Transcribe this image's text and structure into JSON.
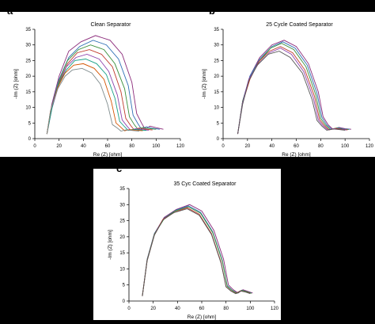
{
  "panels": [
    {
      "letter": "a"
    },
    {
      "letter": "b"
    },
    {
      "letter": "c"
    }
  ],
  "chart_data": [
    {
      "type": "line",
      "title": "Clean Separator",
      "xlabel": "Re (Z) [ohm]",
      "ylabel": "-Im (Z) [ohm]",
      "xlim": [
        0,
        120
      ],
      "ylim": [
        0,
        35
      ],
      "xticks": [
        "0",
        "20",
        "40",
        "60",
        "80",
        "100",
        "120"
      ],
      "yticks": [
        "0",
        "5",
        "10",
        "15",
        "20",
        "25",
        "30",
        "35"
      ],
      "colors": [
        "#8b2a7a",
        "#2e6fb5",
        "#3a8f3a",
        "#c0392b",
        "#8e44ad",
        "#16a085",
        "#d35400",
        "#7f8c8d",
        "#555555"
      ],
      "series": [
        {
          "x": [
            10,
            14,
            20,
            28,
            38,
            50,
            62,
            72,
            80,
            84,
            88,
            91,
            95,
            100,
            106
          ],
          "y": [
            1.5,
            11,
            20,
            28,
            31,
            33,
            31.5,
            27,
            18,
            8,
            5,
            3,
            4,
            3.5,
            3
          ]
        },
        {
          "x": [
            10,
            14,
            20,
            28,
            37,
            48,
            59,
            69,
            77,
            81,
            85,
            88,
            92,
            97,
            103
          ],
          "y": [
            1.5,
            10.5,
            19,
            26,
            29.5,
            31.5,
            30,
            25.5,
            17,
            7.5,
            4.8,
            3,
            3.8,
            3.3,
            3
          ]
        },
        {
          "x": [
            10,
            14,
            20,
            27,
            36,
            46,
            57,
            66,
            74,
            78,
            82,
            85,
            89,
            94,
            100
          ],
          "y": [
            1.5,
            10,
            18.5,
            25,
            28.5,
            30,
            28.5,
            24,
            16,
            7,
            4.5,
            3,
            3.6,
            3.2,
            3
          ]
        },
        {
          "x": [
            10,
            14,
            20,
            27,
            35,
            45,
            55,
            64,
            71,
            75,
            79,
            82,
            86,
            91,
            97
          ],
          "y": [
            1.5,
            10,
            18,
            24,
            27.5,
            28.5,
            27,
            23,
            15,
            6.5,
            4.2,
            2.8,
            3.4,
            3,
            2.8
          ]
        },
        {
          "x": [
            10,
            14,
            20,
            26,
            34,
            43,
            53,
            61,
            68,
            72,
            76,
            79,
            83,
            88,
            94
          ],
          "y": [
            1.5,
            9.5,
            17.5,
            23,
            26,
            27,
            25.5,
            21.5,
            14,
            6,
            4,
            2.7,
            3.2,
            2.9,
            2.7
          ]
        },
        {
          "x": [
            10,
            14,
            19,
            26,
            33,
            42,
            51,
            59,
            66,
            70,
            74,
            77,
            81,
            86,
            92
          ],
          "y": [
            1.5,
            9.5,
            17,
            22,
            25,
            25.5,
            24,
            20.5,
            13,
            5.5,
            3.8,
            2.6,
            3,
            2.8,
            2.6
          ]
        },
        {
          "x": [
            10,
            13,
            19,
            25,
            32,
            40,
            49,
            57,
            63,
            67,
            71,
            74,
            78,
            83,
            89
          ],
          "y": [
            1.5,
            9,
            16.5,
            21,
            23.5,
            24,
            22.5,
            19,
            12,
            5,
            3.6,
            2.5,
            2.9,
            2.7,
            2.5
          ]
        },
        {
          "x": [
            10,
            13,
            19,
            25,
            31,
            39,
            47,
            54,
            60,
            64,
            68,
            71,
            75,
            80,
            86
          ],
          "y": [
            1.5,
            9,
            16,
            20,
            22,
            22.5,
            21,
            17.5,
            11,
            4.5,
            3.4,
            2.4,
            2.8,
            2.6,
            2.4
          ]
        }
      ]
    },
    {
      "type": "line",
      "title": "25 Cycle Coated Separator",
      "xlabel": "Re (Z) [ohm]",
      "ylabel": "-Im (Z) [ohm]",
      "xlim": [
        0,
        120
      ],
      "ylim": [
        0,
        35
      ],
      "xticks": [
        "0",
        "20",
        "40",
        "60",
        "80",
        "100",
        "120"
      ],
      "yticks": [
        "0",
        "5",
        "10",
        "15",
        "20",
        "25",
        "30",
        "35"
      ],
      "colors": [
        "#8b2a7a",
        "#2e6fb5",
        "#3a8f3a",
        "#c0392b",
        "#8e44ad",
        "#555555"
      ],
      "series": [
        {
          "x": [
            12,
            16,
            22,
            30,
            40,
            50,
            60,
            70,
            78,
            82,
            86,
            90,
            95,
            100,
            105
          ],
          "y": [
            1.5,
            12,
            20,
            26,
            30,
            31.5,
            29.5,
            24,
            15,
            7,
            4.5,
            3,
            3.6,
            3.2,
            3
          ]
        },
        {
          "x": [
            12,
            16,
            22,
            30,
            40,
            49,
            59,
            69,
            77,
            81,
            85,
            89,
            94,
            99,
            104
          ],
          "y": [
            1.5,
            12,
            20,
            25.5,
            29.5,
            31,
            29,
            23.5,
            14.5,
            6.8,
            4.4,
            3,
            3.5,
            3.1,
            3
          ]
        },
        {
          "x": [
            12,
            16,
            22,
            30,
            39,
            48,
            58,
            68,
            76,
            80,
            84,
            88,
            93,
            98,
            103
          ],
          "y": [
            1.5,
            12,
            19.5,
            25,
            29,
            30.5,
            28.5,
            23,
            14,
            6.5,
            4.3,
            2.9,
            3.4,
            3,
            2.9
          ]
        },
        {
          "x": [
            12,
            16,
            22,
            29,
            38,
            47,
            57,
            67,
            75,
            79,
            83,
            87,
            92,
            97,
            102
          ],
          "y": [
            1.5,
            11.5,
            19,
            24.5,
            28,
            29.5,
            27.5,
            22,
            13.5,
            6.2,
            4.2,
            2.8,
            3.3,
            3,
            2.8
          ]
        },
        {
          "x": [
            12,
            16,
            21,
            29,
            38,
            47,
            56,
            66,
            74,
            78,
            82,
            86,
            91,
            96,
            101
          ],
          "y": [
            1.5,
            11.5,
            19,
            24,
            27.5,
            29,
            27,
            21.5,
            13,
            6,
            4.1,
            2.8,
            3.2,
            2.9,
            2.8
          ]
        },
        {
          "x": [
            12,
            16,
            21,
            28,
            37,
            46,
            55,
            65,
            73,
            77,
            81,
            85,
            90,
            95,
            100
          ],
          "y": [
            1.5,
            11,
            18.5,
            23.5,
            27,
            28,
            26,
            21,
            12.5,
            5.8,
            4,
            2.7,
            3.1,
            2.9,
            2.7
          ]
        }
      ]
    },
    {
      "type": "line",
      "title": "35 Cyc Coated Separator",
      "xlabel": "Re (Z) [ohm]",
      "ylabel": "-Im (Z) [ohm]",
      "xlim": [
        0,
        120
      ],
      "ylim": [
        0,
        35
      ],
      "xticks": [
        "0",
        "20",
        "40",
        "60",
        "80",
        "100",
        "120"
      ],
      "yticks": [
        "0",
        "5",
        "10",
        "15",
        "20",
        "25",
        "30",
        "35"
      ],
      "colors": [
        "#8b2a7a",
        "#2e6fb5",
        "#3a8f3a",
        "#c0392b",
        "#555555"
      ],
      "series": [
        {
          "x": [
            11,
            15,
            21,
            29,
            39,
            50,
            60,
            70,
            78,
            82,
            86,
            90,
            94,
            98,
            102
          ],
          "y": [
            1.5,
            13,
            21,
            26,
            28.5,
            30,
            28,
            22,
            13,
            5,
            3.5,
            2.5,
            3.5,
            3,
            2.5
          ]
        },
        {
          "x": [
            11,
            15,
            21,
            29,
            39,
            49,
            59,
            69,
            77,
            81,
            85,
            89,
            93,
            97,
            101
          ],
          "y": [
            1.5,
            13,
            21,
            25.8,
            28.3,
            29.6,
            27.6,
            21.6,
            12.6,
            4.8,
            3.4,
            2.5,
            3.4,
            2.9,
            2.5
          ]
        },
        {
          "x": [
            11,
            15,
            21,
            29,
            38,
            49,
            59,
            69,
            77,
            81,
            85,
            89,
            93,
            97,
            101
          ],
          "y": [
            1.5,
            12.8,
            20.8,
            25.6,
            28,
            29.3,
            27.3,
            21.3,
            12.3,
            4.6,
            3.3,
            2.4,
            3.3,
            2.9,
            2.4
          ]
        },
        {
          "x": [
            11,
            15,
            21,
            28,
            38,
            48,
            58,
            68,
            76,
            80,
            84,
            88,
            92,
            96,
            100
          ],
          "y": [
            1.5,
            12.6,
            20.6,
            25.4,
            27.7,
            29,
            27,
            21,
            12,
            4.5,
            3.2,
            2.4,
            3.2,
            2.8,
            2.4
          ]
        },
        {
          "x": [
            11,
            15,
            21,
            28,
            37,
            48,
            58,
            68,
            76,
            80,
            84,
            88,
            92,
            96,
            100
          ],
          "y": [
            1.5,
            12.5,
            20.5,
            25.2,
            27.5,
            28.7,
            26.7,
            20.7,
            11.7,
            4.4,
            3.1,
            2.3,
            3.1,
            2.8,
            2.3
          ]
        }
      ]
    }
  ]
}
